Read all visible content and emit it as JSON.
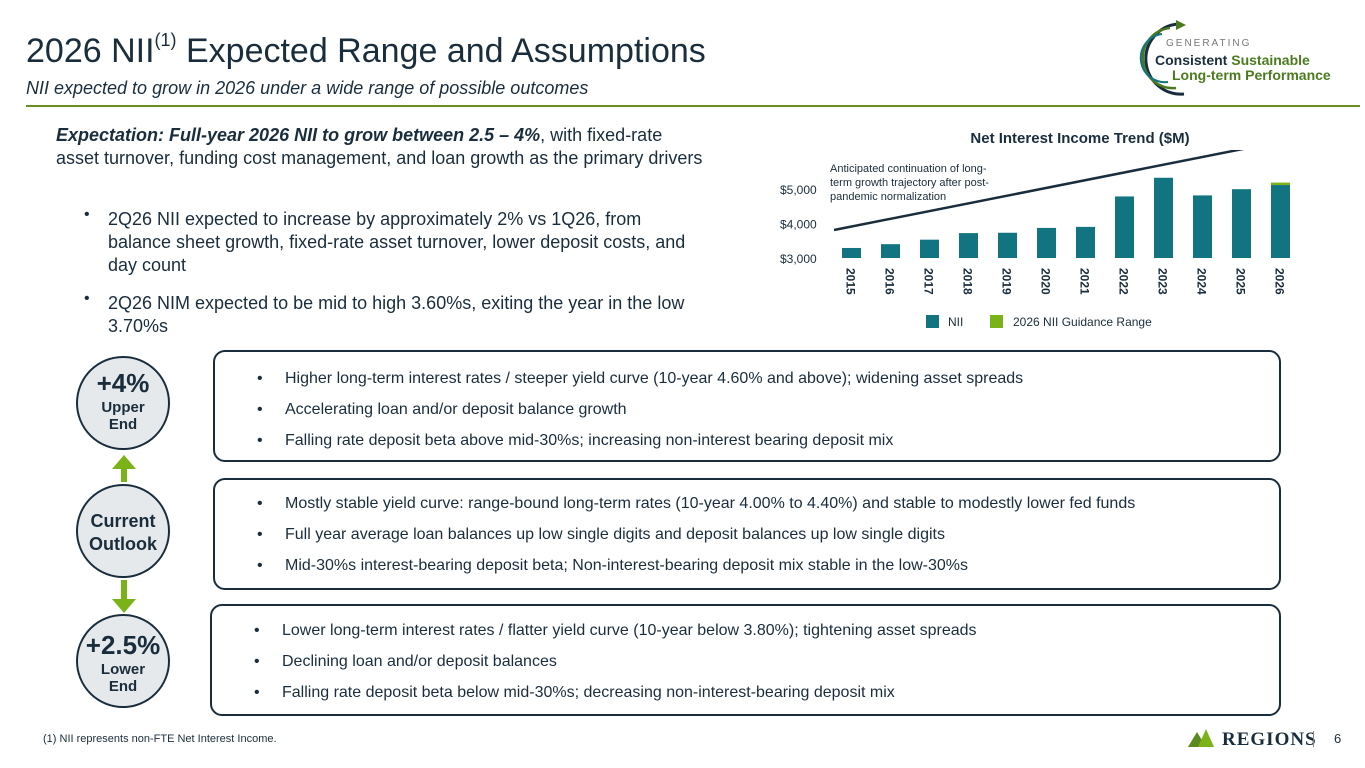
{
  "header": {
    "title_main": "2026 NII",
    "title_sup": "(1)",
    "title_rest": " Expected Range and Assumptions",
    "subtitle": "NII expected to grow in 2026 under a wide range of possible outcomes"
  },
  "logo": {
    "line1": "GENERATING",
    "line2a": "Consistent",
    "line2b": " Sustainable",
    "line3": "Long-term Performance"
  },
  "expectation": {
    "bold": "Expectation: Full-year 2026 NII to grow between 2.5 – 4%",
    "rest": ", with fixed-rate asset turnover, funding cost management, and loan growth as the primary drivers",
    "bullets": [
      "2Q26 NII expected to increase by approximately 2% vs 1Q26, from balance sheet growth, fixed-rate asset turnover, lower deposit costs, and day count",
      "2Q26 NIM expected to be mid to high 3.60%s, exiting the year in the low 3.70%s"
    ]
  },
  "chart_data": {
    "type": "bar",
    "title": "Net Interest Income Trend ($M)",
    "categories": [
      "2015",
      "2016",
      "2017",
      "2018",
      "2019",
      "2020",
      "2021",
      "2022",
      "2023",
      "2024",
      "2025",
      "2026"
    ],
    "series": [
      {
        "name": "NII",
        "color": "#127480",
        "values": [
          3290,
          3400,
          3530,
          3720,
          3730,
          3870,
          3900,
          4780,
          5320,
          4810,
          4990,
          5110
        ]
      },
      {
        "name": "2026 NII Guidance Range",
        "color": "#7ab317",
        "values": [
          0,
          0,
          0,
          0,
          0,
          0,
          0,
          0,
          0,
          0,
          0,
          70
        ]
      }
    ],
    "ylim": [
      3000,
      5400
    ],
    "yticks": [
      3000,
      4000,
      5000
    ],
    "ytick_labels": [
      "$3,000",
      "$4,000",
      "$5,000"
    ],
    "annotation": "Anticipated continuation of long-term growth trajectory after post-pandemic normalization",
    "legend": [
      "NII",
      "2026 NII Guidance Range"
    ]
  },
  "scenarios": {
    "upper": {
      "pct": "+4%",
      "line1": "Upper",
      "line2": "End",
      "items": [
        "Higher long-term interest rates / steeper yield curve (10-year 4.60% and above); widening asset spreads",
        "Accelerating loan and/or deposit balance growth",
        "Falling rate deposit beta above mid-30%s; increasing non-interest bearing deposit mix"
      ]
    },
    "current": {
      "line1": "Current",
      "line2": "Outlook",
      "items": [
        "Mostly stable yield curve: range-bound long-term rates (10-year 4.00% to 4.40%) and stable to modestly lower fed funds",
        "Full year average loan balances up low single digits and deposit balances up low single digits",
        "Mid-30%s interest-bearing deposit beta; Non-interest-bearing deposit mix stable in the low-30%s"
      ]
    },
    "lower": {
      "pct": "+2.5%",
      "line1": "Lower",
      "line2": "End",
      "items": [
        "Lower long-term interest rates / flatter yield curve (10-year below 3.80%); tightening asset spreads",
        "Declining loan and/or deposit balances",
        "Falling rate deposit beta below mid-30%s; decreasing non-interest-bearing deposit mix"
      ]
    }
  },
  "footer": {
    "footnote": "(1) NII represents non-FTE Net Interest Income.",
    "brand": "REGIONS",
    "page": "6"
  }
}
